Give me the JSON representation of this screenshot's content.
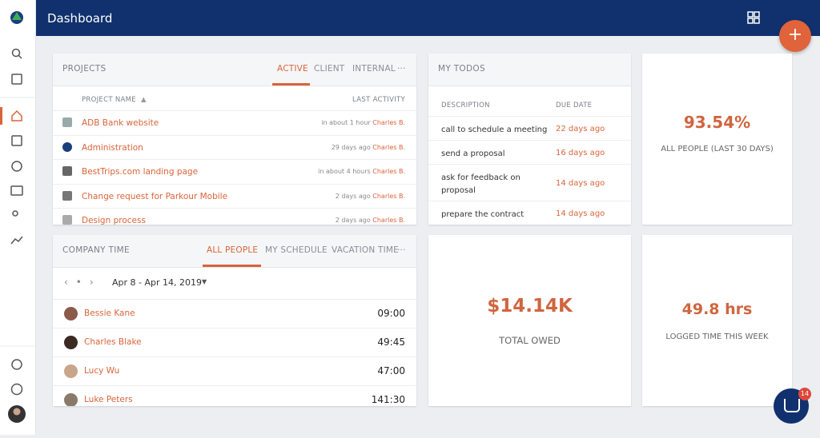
{
  "header": {
    "title": "Dashboard"
  },
  "projects": {
    "title": "PROJECTS",
    "tabs": [
      "ACTIVE",
      "CLIENT",
      "INTERNAL"
    ],
    "columns": [
      "PROJECT NAME",
      "LAST ACTIVITY"
    ],
    "rows": [
      {
        "name": "ADB Bank website",
        "time": "in about 1 hour",
        "person": "Charles B."
      },
      {
        "name": "Administration",
        "time": "29 days ago",
        "person": "Charles B."
      },
      {
        "name": "BestTrips.com landing page",
        "time": "in about 4 hours",
        "person": "Charles B."
      },
      {
        "name": "Change request for Parkour Mobile",
        "time": "2 days ago",
        "person": "Charles B."
      },
      {
        "name": "Design process",
        "time": "2 days ago",
        "person": "Charles B."
      }
    ]
  },
  "todos": {
    "title": "MY TODOS",
    "columns": [
      "DESCRIPTION",
      "DUE DATE"
    ],
    "rows": [
      {
        "description": "call to schedule a meeting",
        "due": "22 days ago"
      },
      {
        "description": "send a proposal",
        "due": "16 days ago"
      },
      {
        "description": "ask for feedback on proposal",
        "due": "14 days ago"
      },
      {
        "description": "prepare the contract",
        "due": "14 days ago"
      }
    ]
  },
  "stats": [
    {
      "value": "93.54%",
      "label": "ALL PEOPLE (LAST 30 DAYS)"
    },
    {
      "value": "$14.14K",
      "label": "TOTAL OWED"
    },
    {
      "value": "49.8 hrs",
      "label": "LOGGED TIME THIS WEEK"
    }
  ],
  "company_time": {
    "title": "COMPANY TIME",
    "tabs": [
      "ALL PEOPLE",
      "MY SCHEDULE",
      "VACATION TIME"
    ],
    "range": "Apr 8 - Apr 14, 2019",
    "rows": [
      {
        "name": "Bessie Kane",
        "time": "09:00"
      },
      {
        "name": "Charles Blake",
        "time": "49:45"
      },
      {
        "name": "Lucy Wu",
        "time": "47:00"
      },
      {
        "name": "Luke Peters",
        "time": "141:30"
      }
    ]
  },
  "chat_badge": "14"
}
